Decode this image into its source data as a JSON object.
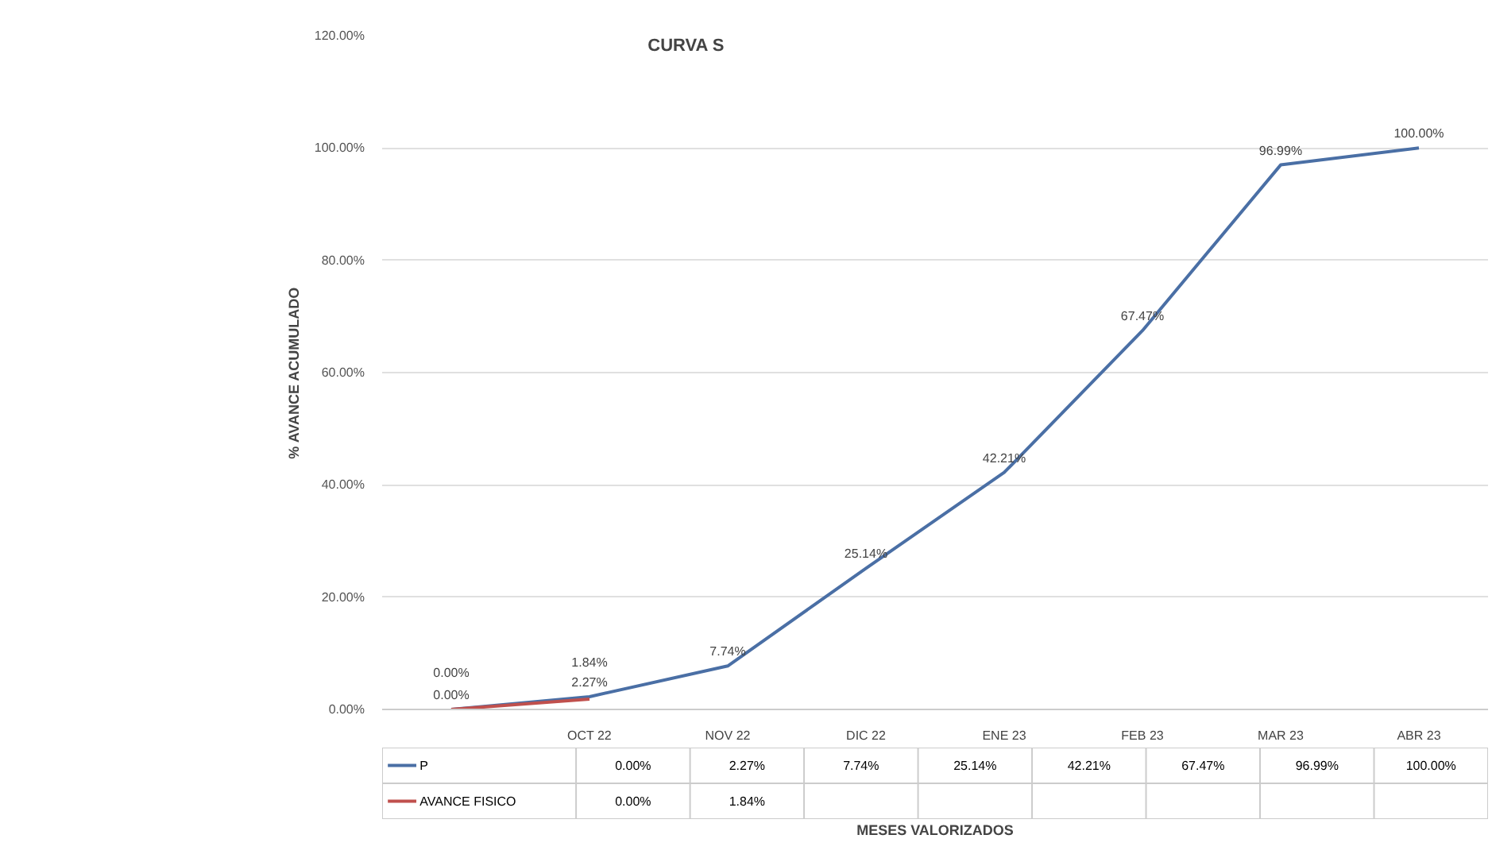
{
  "chart_data": {
    "type": "line",
    "title": "CURVA S",
    "annotations": [
      "MESES VALORIZADOS"
    ],
    "ylabel": "% AVANCE ACUMULADO",
    "categories": [
      null,
      "OCT 22",
      "NOV 22",
      "DIC 22",
      "ENE 23",
      "FEB 23",
      "MAR 23",
      "ABR 23"
    ],
    "series": [
      {
        "name": "P",
        "color": "#4a6fa5",
        "values": [
          0,
          2.27,
          7.74,
          25.14,
          42.21,
          67.47,
          96.99,
          100
        ],
        "value_labels": [
          "0.00%",
          "2.27%",
          "7.74%",
          "25.14%",
          "42.21%",
          "67.47%",
          "96.99%",
          "100.00%"
        ]
      },
      {
        "name": "AVANCE FISICO",
        "color": "#c0504d",
        "values": [
          0,
          1.84,
          null,
          null,
          null,
          null,
          null,
          null
        ],
        "value_labels": [
          "0.00%",
          "1.84%",
          null,
          null,
          null,
          null,
          null,
          null
        ]
      }
    ],
    "ylim": [
      0,
      120
    ],
    "yticks": [
      {
        "value": 0,
        "label": "0.00%"
      },
      {
        "value": 20,
        "label": "20.00%"
      },
      {
        "value": 40,
        "label": "40.00%"
      },
      {
        "value": 60,
        "label": "60.00%"
      },
      {
        "value": 80,
        "label": "80.00%"
      },
      {
        "value": 100,
        "label": "100.00%"
      },
      {
        "value": 120,
        "label": "120.00%"
      }
    ],
    "grid": "y",
    "legend": "bottom",
    "line_style": "solid"
  }
}
